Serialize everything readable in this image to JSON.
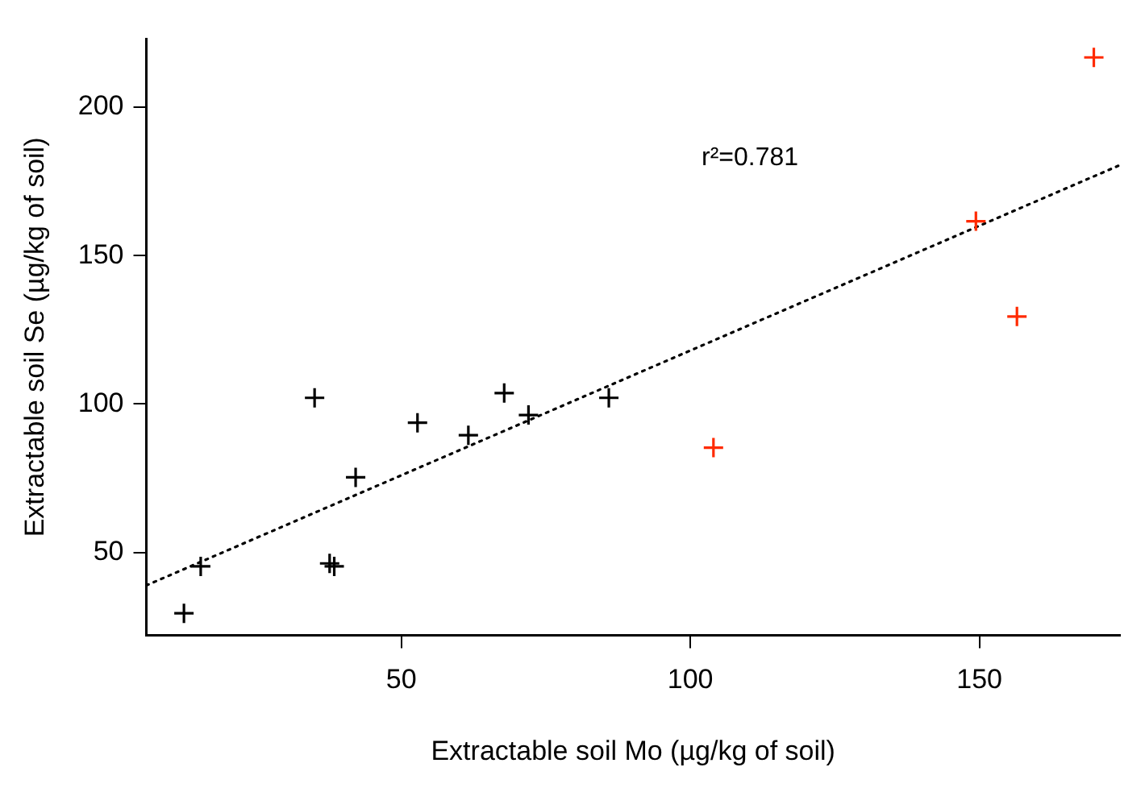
{
  "chart_data": {
    "type": "scatter",
    "xlabel": "Extractable soil Mo (µg/kg of soil)",
    "ylabel": "Extractable soil Se (µg/kg of soil)",
    "annotations": [
      "r²=0.781"
    ],
    "xlim": [
      5.9,
      174.3
    ],
    "ylim": [
      22.1,
      223
    ],
    "xticks": [
      50,
      100,
      150
    ],
    "yticks": [
      50,
      100,
      150,
      200
    ],
    "grid": false,
    "legend": false,
    "marker": "cross",
    "series": [
      {
        "color": "#000000",
        "x": [
          12.4,
          15.3,
          35.0,
          37.6,
          38.4,
          42.1,
          52.8,
          61.6,
          67.8,
          72.0,
          85.9
        ],
        "values": [
          29.5,
          45.3,
          102.1,
          46.3,
          45.3,
          75.3,
          93.7,
          89.5,
          103.7,
          96.3,
          102.1
        ]
      },
      {
        "color": "#ff2a00",
        "x": [
          104.0,
          149.4,
          156.5,
          169.8
        ],
        "values": [
          85.3,
          161.6,
          129.5,
          216.8
        ]
      },
      {
        "type": "line",
        "color": "#000000",
        "line_style": "dotted",
        "marker": "none",
        "x": [
          5.9,
          174.3
        ],
        "values": [
          38.9,
          180.5
        ]
      }
    ]
  }
}
